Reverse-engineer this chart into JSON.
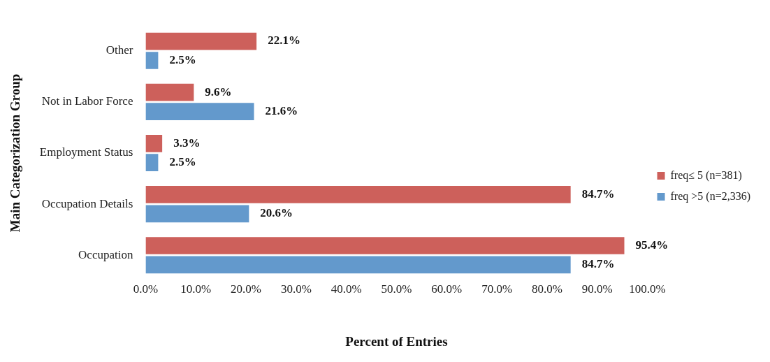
{
  "chart_data": {
    "type": "bar",
    "orientation": "horizontal",
    "xlabel": "Percent of Entries",
    "ylabel": "Main Categorization Group",
    "categories": [
      "Other",
      "Not in Labor Force",
      "Employment Status",
      "Occupation Details",
      "Occupation"
    ],
    "series": [
      {
        "name": "freq≤ 5 (n=381)",
        "color": "#cd605b",
        "values": [
          22.1,
          9.6,
          3.3,
          84.7,
          95.4
        ],
        "value_labels": [
          "22.1%",
          "9.6%",
          "3.3%",
          "84.7%",
          "95.4%"
        ]
      },
      {
        "name": "freq >5 (n=2,336)",
        "color": "#6399cc",
        "values": [
          2.5,
          21.6,
          2.5,
          20.6,
          84.7
        ],
        "value_labels": [
          "2.5%",
          "21.6%",
          "2.5%",
          "20.6%",
          "84.7%"
        ]
      }
    ],
    "xlim": [
      0,
      100
    ],
    "xticks": [
      {
        "value": 0,
        "label": "0.0%"
      },
      {
        "value": 10,
        "label": "10.0%"
      },
      {
        "value": 20,
        "label": "20.0%"
      },
      {
        "value": 30,
        "label": "30.0%"
      },
      {
        "value": 40,
        "label": "40.0%"
      },
      {
        "value": 50,
        "label": "50.0%"
      },
      {
        "value": 60,
        "label": "60.0%"
      },
      {
        "value": 70,
        "label": "70.0%"
      },
      {
        "value": 80,
        "label": "80.0%"
      },
      {
        "value": 90,
        "label": "90.0%"
      },
      {
        "value": 100,
        "label": "100.0%"
      }
    ],
    "grid": false,
    "legend": "right"
  }
}
